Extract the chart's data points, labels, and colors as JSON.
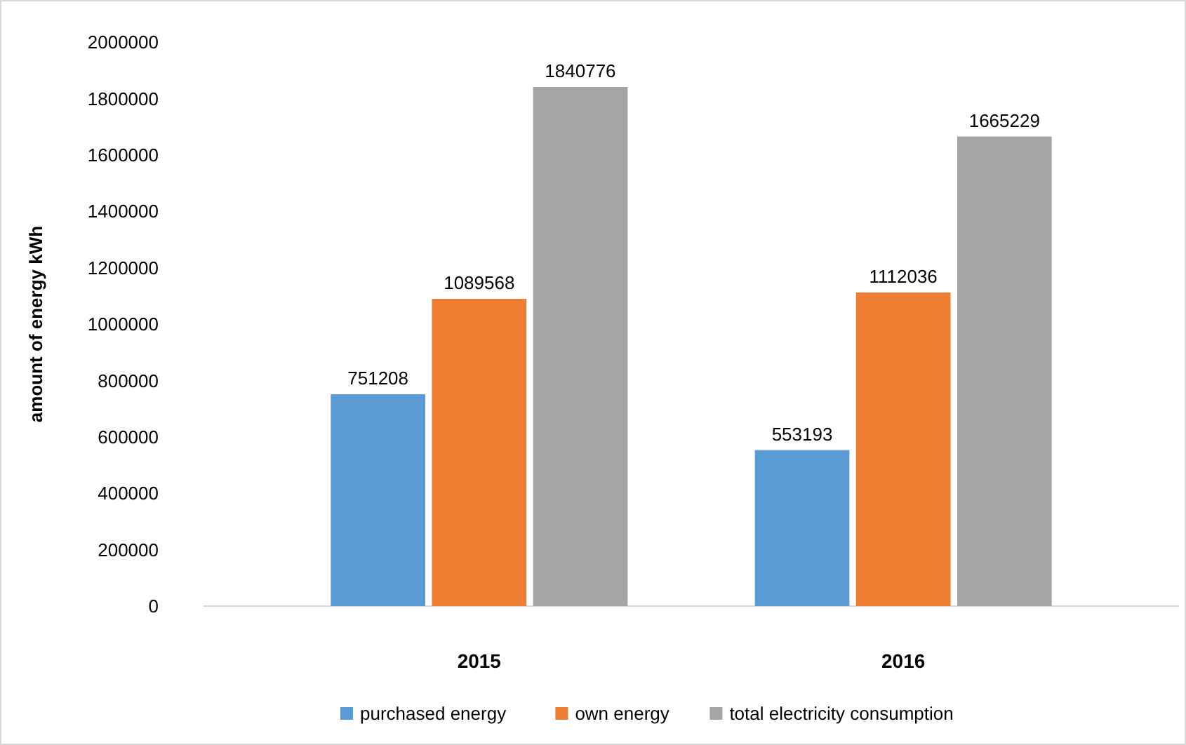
{
  "chart_data": {
    "type": "bar",
    "ylabel": "amount of energy kWh",
    "categories": [
      "2015",
      "2016"
    ],
    "series": [
      {
        "name": "purchased energy",
        "color": "#5b9bd5",
        "values": [
          751208,
          553193
        ]
      },
      {
        "name": "own energy",
        "color": "#ed7d31",
        "values": [
          1089568,
          1112036
        ]
      },
      {
        "name": "total electricity consumption",
        "color": "#a5a5a5",
        "values": [
          1840776,
          1665229
        ]
      }
    ],
    "ylim": [
      0,
      2000000
    ],
    "yticks": [
      0,
      200000,
      400000,
      600000,
      800000,
      1000000,
      1200000,
      1400000,
      1600000,
      1800000,
      2000000
    ],
    "data_labels": true,
    "legend": "bottom",
    "grid": false
  }
}
